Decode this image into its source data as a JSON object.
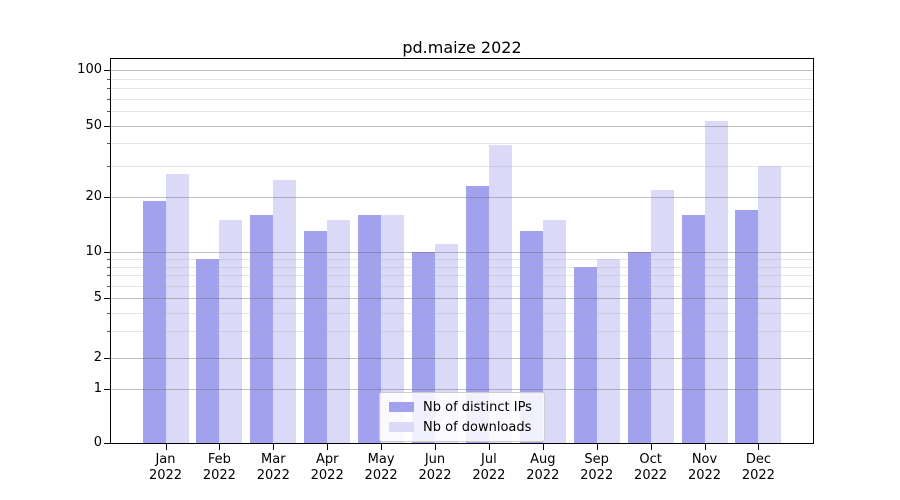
{
  "title": "pd.maize 2022",
  "legend": {
    "entries": [
      {
        "label": "Nb of distinct IPs",
        "color": "#a1a1ee"
      },
      {
        "label": "Nb of downloads",
        "color": "#dadaf8"
      }
    ]
  },
  "x_axis": {
    "months": [
      "Jan",
      "Feb",
      "Mar",
      "Apr",
      "May",
      "Jun",
      "Jul",
      "Aug",
      "Sep",
      "Oct",
      "Nov",
      "Dec"
    ],
    "year": "2022"
  },
  "y_axis": {
    "tick_labels": [
      "100",
      "50",
      "20",
      "10",
      "5",
      "2",
      "1",
      "0"
    ],
    "tick_values": [
      100,
      50,
      20,
      10,
      5,
      2,
      1,
      0
    ]
  },
  "chart_data": {
    "type": "bar",
    "title": "pd.maize 2022",
    "categories": [
      "Jan 2022",
      "Feb 2022",
      "Mar 2022",
      "Apr 2022",
      "May 2022",
      "Jun 2022",
      "Jul 2022",
      "Aug 2022",
      "Sep 2022",
      "Oct 2022",
      "Nov 2022",
      "Dec 2022"
    ],
    "series": [
      {
        "name": "Nb of distinct IPs",
        "color": "#a1a1ee",
        "values": [
          19,
          9,
          16,
          13,
          16,
          10,
          23,
          13,
          8,
          10,
          16,
          17
        ]
      },
      {
        "name": "Nb of downloads",
        "color": "#dadaf8",
        "values": [
          27,
          15,
          25,
          15,
          16,
          11,
          39,
          15,
          9,
          22,
          53,
          30
        ]
      }
    ],
    "xlabel": "",
    "ylabel": "",
    "yscale": "symlog",
    "yticks": [
      0,
      1,
      2,
      5,
      10,
      20,
      50,
      100
    ],
    "ylim": [
      0,
      107
    ],
    "grid": "both",
    "legend_position": "lower center"
  }
}
